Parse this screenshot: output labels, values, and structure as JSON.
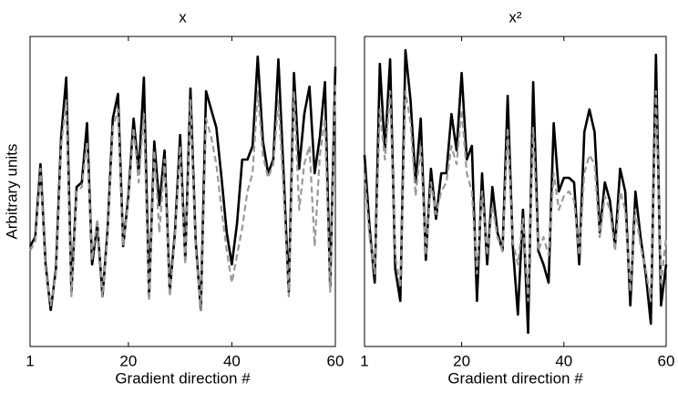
{
  "chart_data": [
    {
      "type": "line",
      "title": "x",
      "xlabel": "Gradient direction #",
      "ylabel": "Arbitrary units",
      "x": [
        1,
        2,
        3,
        4,
        5,
        6,
        7,
        8,
        9,
        10,
        11,
        12,
        13,
        14,
        15,
        16,
        17,
        18,
        19,
        20,
        21,
        22,
        23,
        24,
        25,
        26,
        27,
        28,
        29,
        30,
        31,
        32,
        33,
        34,
        35,
        36,
        37,
        38,
        39,
        40,
        41,
        42,
        43,
        44,
        45,
        46,
        47,
        48,
        49,
        50,
        51,
        52,
        53,
        54,
        55,
        56,
        57,
        58,
        59,
        60
      ],
      "xlim": [
        1,
        60
      ],
      "xticks": [
        1,
        20,
        40,
        60
      ],
      "ylim": [
        0,
        34
      ],
      "series": [
        {
          "color": "#000000",
          "style": "solid",
          "values": [
            11,
            12,
            20,
            9,
            4,
            8.5,
            23,
            29.5,
            6,
            17.5,
            18,
            24.5,
            9,
            13.5,
            5.5,
            13,
            25,
            27.7,
            11,
            16.5,
            25,
            19,
            29.5,
            5.5,
            22.5,
            15.5,
            21.5,
            6,
            12.5,
            23.2,
            9.5,
            28.3,
            11.5,
            4,
            28,
            26,
            24,
            18.5,
            12.5,
            9,
            13.5,
            20.5,
            20.5,
            22,
            31.8,
            22.5,
            19,
            20.5,
            31.5,
            19,
            6,
            30,
            19.5,
            25.5,
            28.5,
            19,
            23,
            29,
            6.5,
            30.7
          ]
        },
        {
          "color": "#999999",
          "style": "dashed",
          "values": [
            10.5,
            11.5,
            19.5,
            8.5,
            4.5,
            8,
            22,
            27,
            5.5,
            17,
            17.5,
            22.5,
            9.5,
            14,
            5.5,
            12.5,
            24,
            26,
            11,
            16,
            24,
            18,
            25.5,
            5,
            21.5,
            12.5,
            20.5,
            5.5,
            12,
            22,
            9,
            27,
            11,
            4,
            25,
            23,
            20,
            15,
            10.5,
            7,
            10,
            13,
            17,
            19,
            28,
            21,
            18.5,
            20,
            27,
            17,
            5.5,
            28,
            15,
            20,
            22,
            11,
            21,
            25,
            6,
            29
          ]
        }
      ]
    },
    {
      "type": "line",
      "title": "x²",
      "xlabel": "Gradient direction #",
      "x": [
        1,
        2,
        3,
        4,
        5,
        6,
        7,
        8,
        9,
        10,
        11,
        12,
        13,
        14,
        15,
        16,
        17,
        18,
        19,
        20,
        21,
        22,
        23,
        24,
        25,
        26,
        27,
        28,
        29,
        30,
        31,
        32,
        33,
        34,
        35,
        36,
        37,
        38,
        39,
        40,
        41,
        42,
        43,
        44,
        45,
        46,
        47,
        48,
        49,
        50,
        51,
        52,
        53,
        54,
        55,
        56,
        57,
        58,
        59,
        60
      ],
      "xlim": [
        1,
        60
      ],
      "xticks": [
        1,
        20,
        40,
        60
      ],
      "ylim": [
        0,
        34
      ],
      "series": [
        {
          "color": "#000000",
          "style": "solid",
          "values": [
            21,
            13,
            7,
            31,
            21.5,
            31.5,
            8.5,
            5,
            32.5,
            27,
            18,
            25,
            9.5,
            19.5,
            14,
            19,
            19,
            25.5,
            21.5,
            30,
            20.5,
            22,
            5,
            19,
            9,
            17.5,
            12.5,
            10.5,
            27.5,
            11,
            3.5,
            15,
            1.5,
            29,
            10.5,
            9,
            7,
            24.5,
            17,
            18.5,
            18.5,
            18,
            9,
            23.5,
            26,
            23.5,
            12.5,
            18,
            16,
            11,
            19.5,
            17,
            4.5,
            17,
            12,
            8,
            2.5,
            32,
            4.5,
            9
          ]
        },
        {
          "color": "#999999",
          "style": "dashed",
          "values": [
            19,
            12,
            8,
            26,
            20.5,
            28,
            10,
            6.5,
            28,
            24.5,
            16.5,
            22,
            10,
            18,
            14.5,
            17,
            18,
            22,
            20,
            26,
            19,
            17,
            8,
            17,
            10,
            15.5,
            12,
            10.5,
            24,
            11.5,
            9,
            14,
            5,
            24,
            10.5,
            12,
            10,
            19,
            15,
            16.5,
            17,
            16,
            10,
            19,
            21,
            20,
            12,
            16.5,
            15,
            10.5,
            17,
            15,
            6,
            15,
            11,
            8.5,
            5,
            28,
            7,
            12
          ]
        }
      ]
    }
  ]
}
